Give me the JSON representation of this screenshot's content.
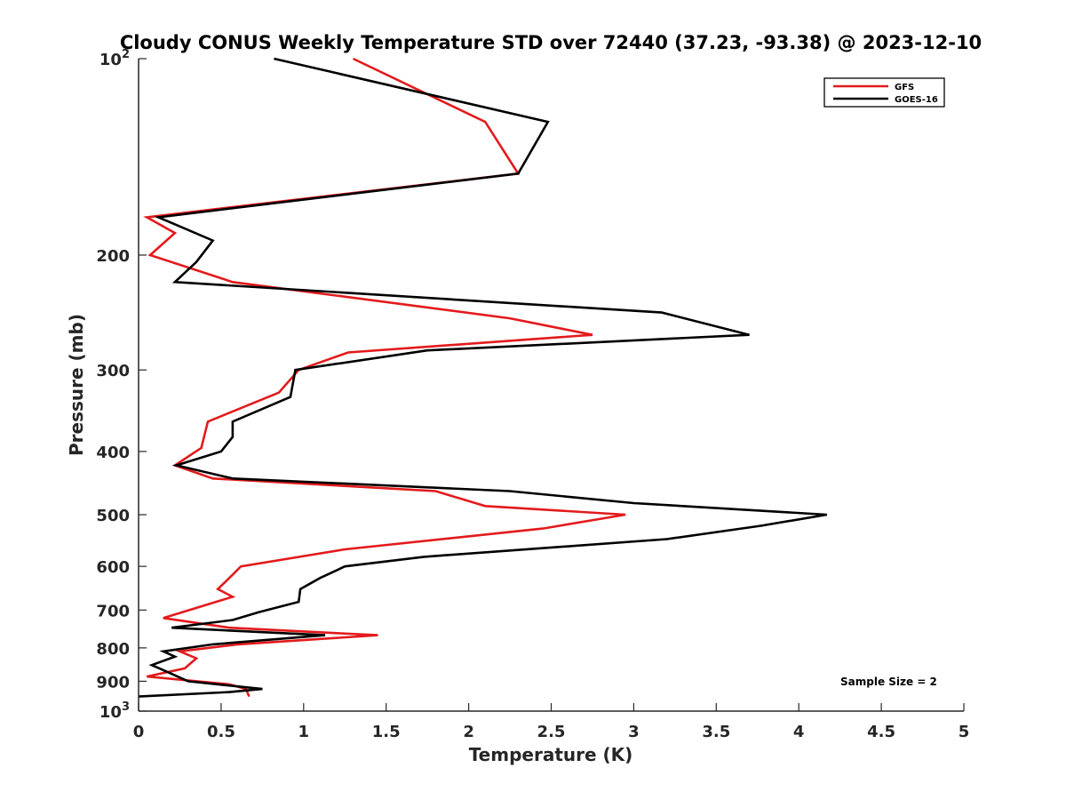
{
  "chart_data": {
    "type": "line",
    "title": "Cloudy CONUS Weekly Temperature STD over 72440 (37.23, -93.38) @ 2023-12-10",
    "xlabel": "Temperature (K)",
    "ylabel": "Pressure (mb)",
    "xlim": [
      0,
      5
    ],
    "ylim": [
      100,
      1000
    ],
    "y_scale": "log",
    "y_reversed": true,
    "x_ticks": [
      0,
      0.5,
      1,
      1.5,
      2,
      2.5,
      3,
      3.5,
      4,
      4.5,
      5
    ],
    "x_tick_labels": [
      "0",
      "0.5",
      "1",
      "1.5",
      "2",
      "2.5",
      "3",
      "3.5",
      "4",
      "4.5",
      "5"
    ],
    "y_ticks": [
      100,
      200,
      300,
      400,
      500,
      600,
      700,
      800,
      900,
      1000
    ],
    "y_tick_labels": [
      {
        "base": "10",
        "exp": "2"
      },
      {
        "base": "200"
      },
      {
        "base": "300"
      },
      {
        "base": "400"
      },
      {
        "base": "500"
      },
      {
        "base": "600"
      },
      {
        "base": "700"
      },
      {
        "base": "800"
      },
      {
        "base": "900"
      },
      {
        "base": "10",
        "exp": "3"
      }
    ],
    "grid": false,
    "legend_position": "top-right",
    "annotation": "Sample Size = 2",
    "series": [
      {
        "name": "GFS",
        "color": "#e31a1c",
        "points": [
          [
            1.3,
            100
          ],
          [
            2.1,
            125
          ],
          [
            2.3,
            150
          ],
          [
            0.05,
            175
          ],
          [
            0.22,
            185
          ],
          [
            0.07,
            200
          ],
          [
            0.57,
            220
          ],
          [
            2.25,
            250
          ],
          [
            2.75,
            265
          ],
          [
            1.27,
            282
          ],
          [
            0.97,
            300
          ],
          [
            0.85,
            325
          ],
          [
            0.42,
            360
          ],
          [
            0.38,
            395
          ],
          [
            0.22,
            420
          ],
          [
            0.45,
            440
          ],
          [
            1.8,
            460
          ],
          [
            2.1,
            485
          ],
          [
            2.95,
            500
          ],
          [
            2.45,
            525
          ],
          [
            1.25,
            565
          ],
          [
            0.62,
            600
          ],
          [
            0.55,
            625
          ],
          [
            0.48,
            650
          ],
          [
            0.57,
            668
          ],
          [
            0.15,
            720
          ],
          [
            0.55,
            745
          ],
          [
            1.45,
            765
          ],
          [
            0.6,
            790
          ],
          [
            0.25,
            810
          ],
          [
            0.35,
            830
          ],
          [
            0.28,
            860
          ],
          [
            0.05,
            885
          ],
          [
            0.55,
            910
          ],
          [
            0.65,
            925
          ],
          [
            0.67,
            950
          ]
        ]
      },
      {
        "name": "GOES-16",
        "color": "#000000",
        "points": [
          [
            0.82,
            100
          ],
          [
            2.48,
            125
          ],
          [
            2.3,
            150
          ],
          [
            0.12,
            175
          ],
          [
            0.45,
            190
          ],
          [
            0.35,
            205
          ],
          [
            0.22,
            220
          ],
          [
            3.17,
            245
          ],
          [
            3.7,
            265
          ],
          [
            1.75,
            280
          ],
          [
            0.95,
            300
          ],
          [
            0.92,
            330
          ],
          [
            0.57,
            360
          ],
          [
            0.57,
            380
          ],
          [
            0.5,
            400
          ],
          [
            0.23,
            420
          ],
          [
            0.57,
            440
          ],
          [
            2.25,
            460
          ],
          [
            3.0,
            480
          ],
          [
            4.17,
            500
          ],
          [
            3.77,
            520
          ],
          [
            3.2,
            545
          ],
          [
            1.73,
            580
          ],
          [
            1.25,
            600
          ],
          [
            1.1,
            625
          ],
          [
            0.98,
            650
          ],
          [
            0.97,
            680
          ],
          [
            0.73,
            705
          ],
          [
            0.57,
            725
          ],
          [
            0.2,
            745
          ],
          [
            1.13,
            765
          ],
          [
            0.45,
            790
          ],
          [
            0.15,
            810
          ],
          [
            0.22,
            825
          ],
          [
            0.08,
            850
          ],
          [
            0.17,
            870
          ],
          [
            0.3,
            900
          ],
          [
            0.75,
            925
          ],
          [
            0.55,
            935
          ],
          [
            0.0,
            950
          ]
        ]
      }
    ]
  }
}
